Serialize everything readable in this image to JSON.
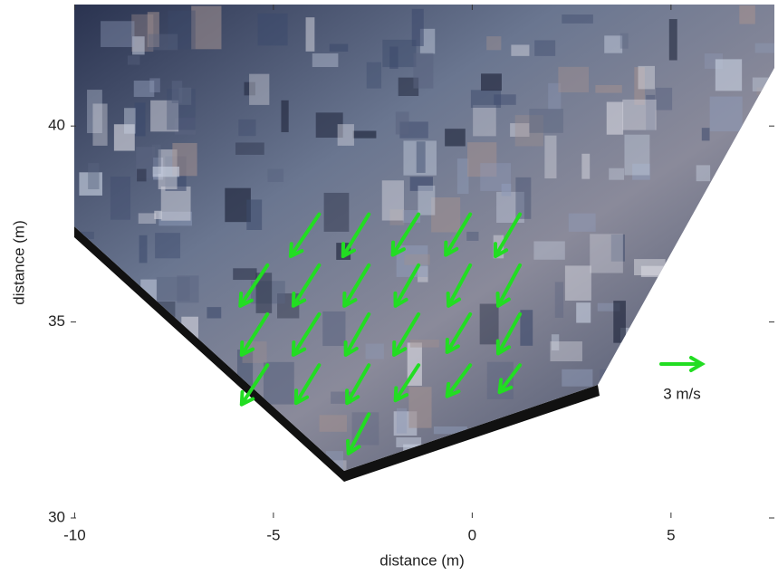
{
  "chart_data": {
    "type": "quiver",
    "xlabel": "distance (m)",
    "ylabel": "distance (m)",
    "xlim": [
      -10.1,
      7.6
    ],
    "ylim": [
      30,
      43.1
    ],
    "xticks": [
      -10,
      -5,
      0,
      5
    ],
    "yticks": [
      30,
      35,
      40
    ],
    "color": "#22dd22",
    "x": [
      -3.85,
      -2.6,
      -1.35,
      -0.05,
      1.2,
      -5.15,
      -3.85,
      -2.6,
      -1.35,
      -0.05,
      1.2,
      -5.15,
      -3.85,
      -2.6,
      -1.35,
      -0.05,
      1.2,
      -5.15,
      -3.85,
      -2.6,
      -1.35,
      -0.05,
      1.2,
      -2.6
    ],
    "y": [
      37.75,
      37.75,
      37.75,
      37.75,
      37.75,
      36.45,
      36.45,
      36.45,
      36.45,
      36.45,
      36.45,
      35.2,
      35.2,
      35.2,
      35.2,
      35.2,
      35.2,
      33.9,
      33.9,
      33.9,
      33.9,
      33.9,
      33.9,
      32.65
    ],
    "u": [
      -2.1,
      -1.9,
      -1.9,
      -1.8,
      -1.8,
      -2.0,
      -1.9,
      -1.8,
      -1.7,
      -1.6,
      -1.6,
      -1.9,
      -1.9,
      -1.7,
      -1.8,
      -1.7,
      -1.6,
      -1.9,
      -1.7,
      -1.6,
      -1.7,
      -1.7,
      -1.5,
      -1.5
    ],
    "v": [
      -3.1,
      -3.1,
      -3.0,
      -3.0,
      -3.1,
      -3.0,
      -3.0,
      -3.0,
      -3.0,
      -3.0,
      -3.0,
      -3.0,
      -3.0,
      -3.0,
      -3.0,
      -2.8,
      -2.9,
      -2.9,
      -2.8,
      -2.8,
      -2.6,
      -2.3,
      -2.0,
      -2.9
    ],
    "key": {
      "value": 3,
      "label": "3 m/s"
    }
  }
}
